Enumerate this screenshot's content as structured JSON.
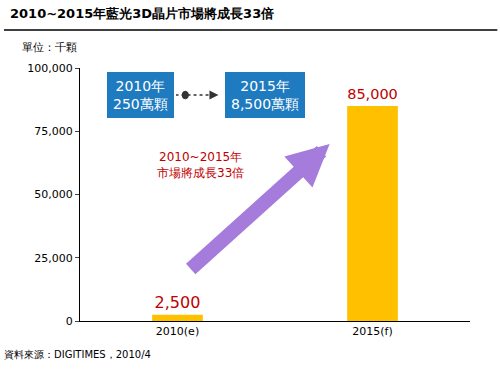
{
  "chart_data": {
    "type": "bar",
    "title": "2010~2015年藍光3D晶片市場將成長33倍",
    "unit_label": "單位：千顆",
    "categories": [
      "2010(e)",
      "2015(f)"
    ],
    "values": [
      2500,
      85000
    ],
    "value_labels": [
      "2,500",
      "85,000"
    ],
    "data_labels": true,
    "color": "#FFC000",
    "ylim": [
      0,
      100000
    ],
    "yticks": [
      0,
      {
        "value": 25000,
        "label": "25,000"
      },
      {
        "value": 50000,
        "label": "50,000"
      },
      {
        "value": 75000,
        "label": "75,000"
      },
      {
        "value": 100000,
        "label": "100,000"
      }
    ],
    "grid": false,
    "boxes": [
      [
        "2010年",
        "250萬顆"
      ],
      [
        "2015年",
        "8,500萬顆"
      ]
    ],
    "note": [
      "2010~2015年",
      "市場將成長33倍"
    ],
    "source": "資料來源：DIGITIMES，2010/4"
  }
}
